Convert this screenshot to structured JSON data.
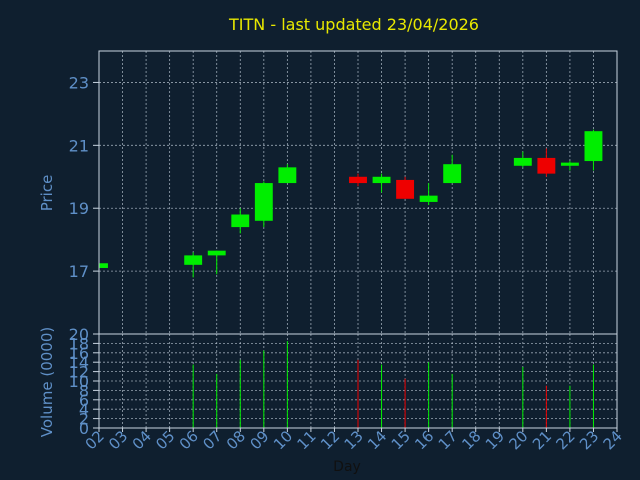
{
  "chart_data": [
    {
      "type": "candlestick",
      "title": "TITN - last updated 23/04/2026",
      "ylabel": "Price",
      "ylim": [
        15,
        24
      ],
      "yticks": [
        17,
        19,
        21,
        23
      ],
      "x_domain": [
        2,
        24
      ],
      "grid": true,
      "up_color": "#00ee00",
      "down_color": "#ee0000",
      "candles": [
        {
          "day": 2,
          "open": 17.1,
          "high": 17.3,
          "low": 17.1,
          "close": 17.25
        },
        {
          "day": 6,
          "open": 17.2,
          "high": 17.6,
          "low": 16.8,
          "close": 17.5
        },
        {
          "day": 7,
          "open": 17.5,
          "high": 17.65,
          "low": 16.9,
          "close": 17.65
        },
        {
          "day": 8,
          "open": 18.4,
          "high": 19.0,
          "low": 18.2,
          "close": 18.8
        },
        {
          "day": 9,
          "open": 18.6,
          "high": 19.85,
          "low": 18.4,
          "close": 19.8
        },
        {
          "day": 10,
          "open": 19.8,
          "high": 20.4,
          "low": 19.8,
          "close": 20.3
        },
        {
          "day": 13,
          "open": 20.0,
          "high": 20.1,
          "low": 19.7,
          "close": 19.8
        },
        {
          "day": 14,
          "open": 19.8,
          "high": 20.1,
          "low": 19.5,
          "close": 20.0
        },
        {
          "day": 15,
          "open": 19.9,
          "high": 20.0,
          "low": 19.3,
          "close": 19.3
        },
        {
          "day": 16,
          "open": 19.2,
          "high": 19.8,
          "low": 19.1,
          "close": 19.4
        },
        {
          "day": 17,
          "open": 19.8,
          "high": 20.7,
          "low": 19.8,
          "close": 20.4
        },
        {
          "day": 20,
          "open": 20.35,
          "high": 20.8,
          "low": 20.3,
          "close": 20.6
        },
        {
          "day": 21,
          "open": 20.6,
          "high": 20.9,
          "low": 20.0,
          "close": 20.1
        },
        {
          "day": 22,
          "open": 20.35,
          "high": 20.5,
          "low": 20.2,
          "close": 20.45
        },
        {
          "day": 23,
          "open": 20.5,
          "high": 21.5,
          "low": 20.2,
          "close": 21.45
        }
      ]
    },
    {
      "type": "bar",
      "xlabel": "Day",
      "ylabel": "Volume (0000)",
      "ylim": [
        0,
        20
      ],
      "yticks": [
        0,
        2,
        4,
        6,
        8,
        10,
        12,
        14,
        16,
        18,
        20
      ],
      "x_ticks": [
        "02",
        "03",
        "04",
        "05",
        "06",
        "07",
        "08",
        "09",
        "10",
        "11",
        "12",
        "13",
        "14",
        "15",
        "16",
        "17",
        "18",
        "19",
        "20",
        "21",
        "22",
        "23",
        "24"
      ],
      "grid": true,
      "volumes": [
        {
          "day": 2,
          "value": 0.5
        },
        {
          "day": 6,
          "value": 13.5
        },
        {
          "day": 7,
          "value": 11.5
        },
        {
          "day": 8,
          "value": 14.5
        },
        {
          "day": 9,
          "value": 16.5
        },
        {
          "day": 10,
          "value": 18.5
        },
        {
          "day": 13,
          "value": 14.5
        },
        {
          "day": 14,
          "value": 13.5
        },
        {
          "day": 15,
          "value": 10.5
        },
        {
          "day": 16,
          "value": 14.0
        },
        {
          "day": 17,
          "value": 11.5
        },
        {
          "day": 20,
          "value": 13.0
        },
        {
          "day": 21,
          "value": 9.0
        },
        {
          "day": 22,
          "value": 9.0
        },
        {
          "day": 23,
          "value": 13.5
        }
      ]
    }
  ],
  "colors": {
    "background": "#0f1f2f",
    "axis": "#c8d4e0",
    "tick_text": "#5f90c8",
    "title": "#e8e800",
    "label": "#5f90c8",
    "xlabel": "#101010"
  }
}
